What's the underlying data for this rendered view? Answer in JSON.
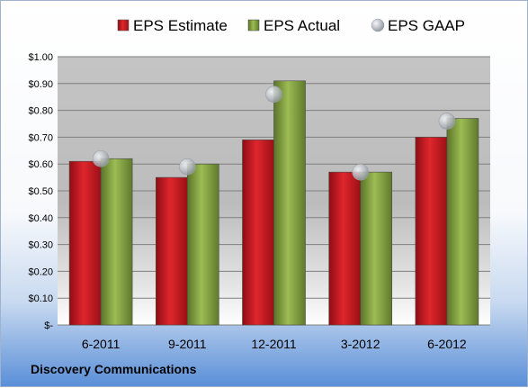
{
  "chart_data": {
    "type": "bar",
    "categories": [
      "6-2011",
      "9-2011",
      "12-2011",
      "3-2012",
      "6-2012"
    ],
    "series": [
      {
        "name": "EPS Estimate",
        "kind": "bar",
        "color": "#c0171f",
        "values": [
          0.61,
          0.55,
          0.69,
          0.57,
          0.7
        ]
      },
      {
        "name": "EPS Actual",
        "kind": "bar",
        "color": "#7a9a3a",
        "values": [
          0.62,
          0.6,
          0.91,
          0.57,
          0.77
        ]
      },
      {
        "name": "EPS GAAP",
        "kind": "marker",
        "color": "#b8bcc4",
        "values": [
          0.62,
          0.59,
          0.86,
          0.57,
          0.76
        ]
      }
    ],
    "y_ticks": [
      "$-",
      "$0.10",
      "$0.20",
      "$0.30",
      "$0.40",
      "$0.50",
      "$0.60",
      "$0.70",
      "$0.80",
      "$0.90",
      "$1.00"
    ],
    "ylim": [
      0,
      1.0
    ],
    "grid": true,
    "legend_position": "top"
  },
  "footer": {
    "company": "Discovery Communications"
  }
}
